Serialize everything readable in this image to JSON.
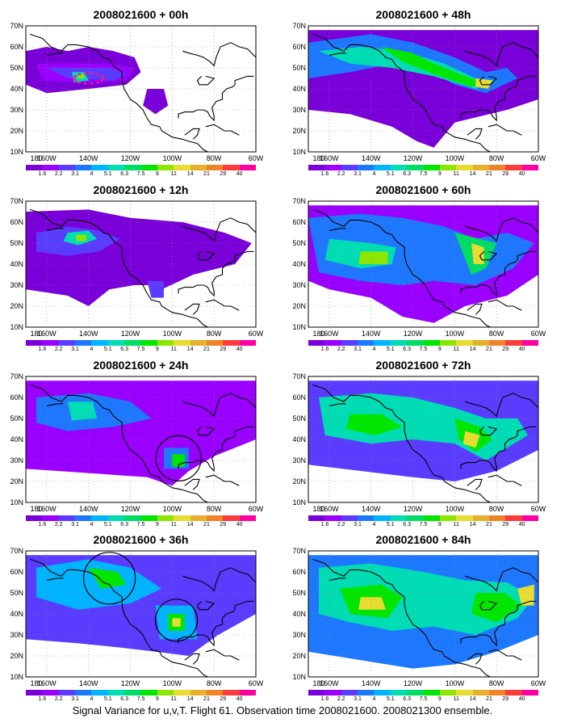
{
  "lat_labels": [
    "70N",
    "60N",
    "50N",
    "40N",
    "30N",
    "20N",
    "10N"
  ],
  "lon_labels": [
    "180",
    "160W",
    "140W",
    "120W",
    "100W",
    "80W",
    "60W"
  ],
  "colorbar": {
    "labels": [
      "1.6",
      "2.2",
      "3.1",
      "4",
      "5.1",
      "6.3",
      "7.5",
      "9",
      "11",
      "14",
      "21",
      "29",
      "40"
    ],
    "colors": [
      "#7a00d9",
      "#9a00ff",
      "#5a3cff",
      "#1e78ff",
      "#00b4ff",
      "#00dcb4",
      "#00dc64",
      "#00e600",
      "#8ce600",
      "#e6dc32",
      "#e6af2d",
      "#f08228",
      "#fa3c3c",
      "#ff00a0"
    ]
  },
  "panels": [
    {
      "title": "2008021600 + 00h",
      "circles": []
    },
    {
      "title": "2008021600 + 48h",
      "circles": []
    },
    {
      "title": "2008021600 + 12h",
      "circles": []
    },
    {
      "title": "2008021600 + 60h",
      "circles": []
    },
    {
      "title": "2008021600 + 24h",
      "circles": [
        {
          "lon": -97,
          "lat": 31,
          "r": 28
        }
      ]
    },
    {
      "title": "2008021600 + 72h",
      "circles": []
    },
    {
      "title": "2008021600 + 36h",
      "circles": [
        {
          "lon": -130,
          "lat": 57,
          "r": 32
        },
        {
          "lon": -98,
          "lat": 37,
          "r": 26
        }
      ]
    },
    {
      "title": "2008021600 + 84h",
      "circles": []
    }
  ],
  "caption": "Signal Variance for u,v,T. Flight 61. Observation time 2008021600. 2008021300 ensemble."
}
